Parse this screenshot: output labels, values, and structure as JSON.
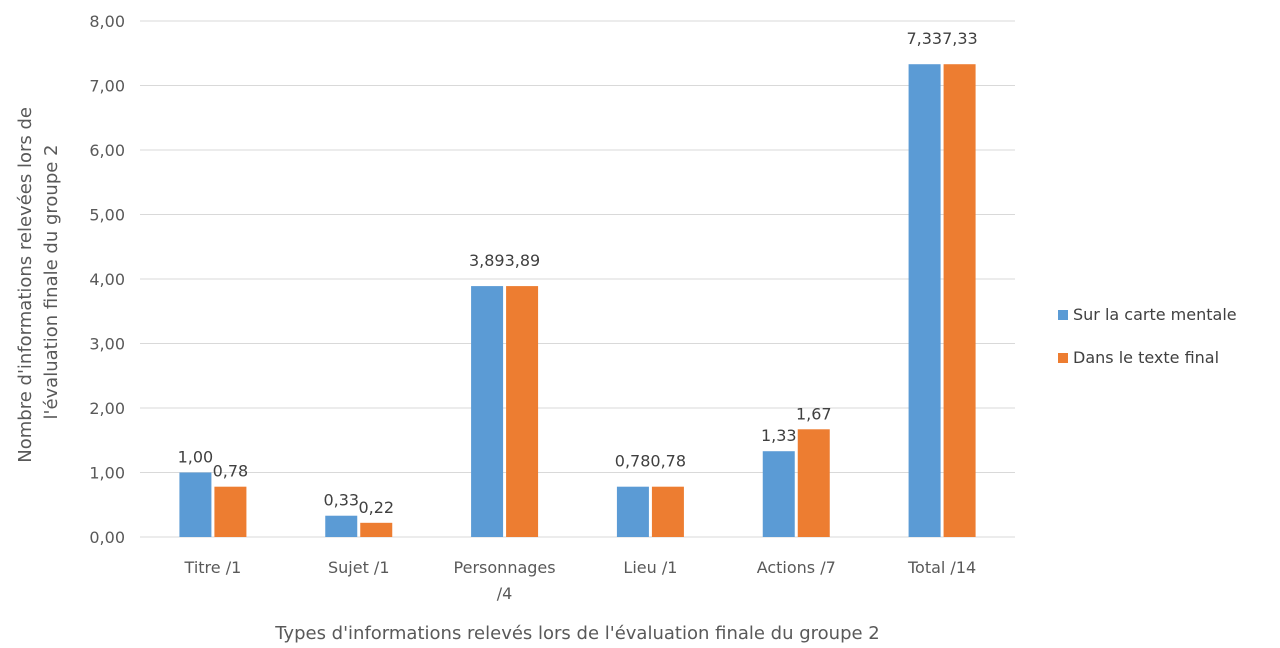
{
  "chart_data": {
    "type": "bar",
    "categories": [
      [
        "Titre /1"
      ],
      [
        "Sujet /1"
      ],
      [
        "Personnages",
        "/4"
      ],
      [
        "Lieu /1"
      ],
      [
        "Actions /7"
      ],
      [
        "Total /14"
      ]
    ],
    "series": [
      {
        "name": "Sur la carte mentale",
        "color": "#5b9bd5",
        "values": [
          1.0,
          0.33,
          3.89,
          0.78,
          1.33,
          7.33
        ]
      },
      {
        "name": "Dans le texte final",
        "color": "#ed7d31",
        "values": [
          0.78,
          0.22,
          3.89,
          0.78,
          1.67,
          7.33
        ]
      }
    ],
    "data_labels": [
      [
        "1,00",
        "0,78"
      ],
      [
        "0,33",
        "0,22"
      ],
      [
        "3,893,89"
      ],
      [
        "0,780,78"
      ],
      [
        "1,33",
        "1,67"
      ],
      [
        "7,337,33"
      ]
    ],
    "ylim": [
      0,
      8
    ],
    "yticks": [
      "0,00",
      "1,00",
      "2,00",
      "3,00",
      "4,00",
      "5,00",
      "6,00",
      "7,00",
      "8,00"
    ],
    "xlabel": "Types d'informations relevés lors de l'évaluation finale du groupe 2",
    "ylabel": [
      "Nombre d'informations relevées lors de",
      "l'évaluation finale du groupe 2"
    ],
    "grid": true,
    "legend_position": "right"
  }
}
